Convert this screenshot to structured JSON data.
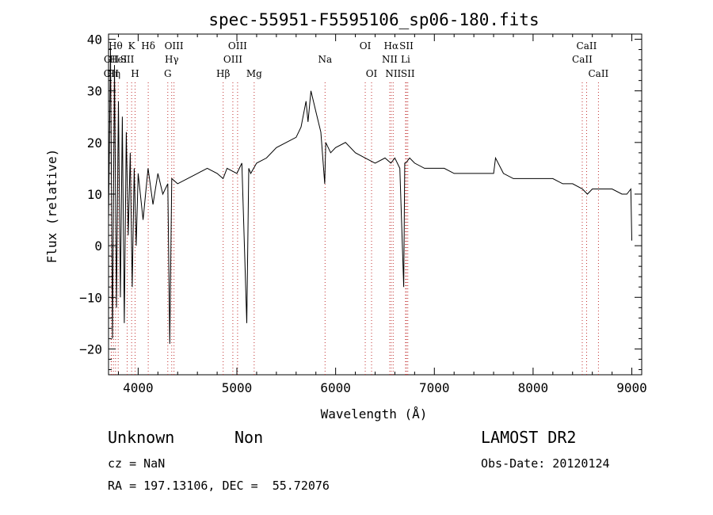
{
  "chart_data": {
    "type": "line",
    "title": "spec-55951-F5595106_sp06-180.fits",
    "xlabel": "Wavelength (Å)",
    "ylabel": "Flux (relative)",
    "xlim": [
      3700,
      9100
    ],
    "ylim": [
      -25,
      41
    ],
    "grid": false,
    "x_ticks": [
      4000,
      5000,
      6000,
      7000,
      8000,
      9000
    ],
    "x_tick_labels": [
      "4000",
      "5000",
      "6000",
      "7000",
      "8000",
      "9000"
    ],
    "y_ticks": [
      -20,
      -10,
      0,
      10,
      20,
      30,
      40
    ],
    "y_tick_labels": [
      "−20",
      "−10",
      "0",
      "10",
      "20",
      "30",
      "40"
    ],
    "series": [
      {
        "x": [
          3700,
          3720,
          3740,
          3760,
          3780,
          3800,
          3820,
          3840,
          3860,
          3880,
          3900,
          3920,
          3940,
          3960,
          3980,
          4000,
          4050,
          4100,
          4150,
          4200,
          4250,
          4300,
          4320,
          4340,
          4400,
          4500,
          4600,
          4700,
          4800,
          4860,
          4900,
          5000,
          5050,
          5100,
          5120,
          5140,
          5200,
          5300,
          5400,
          5500,
          5600,
          5650,
          5700,
          5720,
          5750,
          5800,
          5850,
          5890,
          5900,
          5950,
          6000,
          6100,
          6200,
          6300,
          6400,
          6500,
          6560,
          6600,
          6650,
          6690,
          6700,
          6710,
          6750,
          6800,
          6900,
          7000,
          7100,
          7200,
          7300,
          7400,
          7500,
          7600,
          7620,
          7700,
          7800,
          7900,
          8000,
          8100,
          8200,
          8300,
          8400,
          8500,
          8550,
          8600,
          8700,
          8800,
          8900,
          8950,
          8990,
          9000
        ],
        "y": [
          5,
          38,
          -18,
          35,
          -12,
          28,
          -10,
          25,
          -15,
          22,
          2,
          18,
          -8,
          15,
          0,
          14,
          5,
          15,
          8,
          14,
          10,
          12,
          -19,
          13,
          12,
          13,
          14,
          15,
          14,
          13,
          15,
          14,
          16,
          -15,
          15,
          14,
          16,
          17,
          19,
          20,
          21,
          23,
          28,
          24,
          30,
          26,
          22,
          12,
          20,
          18,
          19,
          20,
          18,
          17,
          16,
          17,
          16,
          17,
          15,
          -8,
          16,
          16,
          17,
          16,
          15,
          15,
          15,
          14,
          14,
          14,
          14,
          14,
          17,
          14,
          13,
          13,
          13,
          13,
          13,
          12,
          12,
          11,
          10,
          11,
          11,
          11,
          10,
          10,
          11,
          1
        ]
      }
    ],
    "line_markers": [
      {
        "x": 3727,
        "label": "OII",
        "row": 2
      },
      {
        "x": 3729,
        "label": "OII",
        "row": 1
      },
      {
        "x": 3750,
        "label": "Hη",
        "row": 2
      },
      {
        "x": 3771,
        "label": "Hθ",
        "row": 0
      },
      {
        "x": 3798,
        "label": "HeI",
        "row": 1
      },
      {
        "x": 3889,
        "label": "SII",
        "row": 1
      },
      {
        "x": 3934,
        "label": "K",
        "row": 0
      },
      {
        "x": 3969,
        "label": "H",
        "row": 2
      },
      {
        "x": 4102,
        "label": "Hδ",
        "row": 0
      },
      {
        "x": 4300,
        "label": "G",
        "row": 2
      },
      {
        "x": 4340,
        "label": "Hγ",
        "row": 1
      },
      {
        "x": 4363,
        "label": "OIII",
        "row": 0
      },
      {
        "x": 4861,
        "label": "Hβ",
        "row": 2
      },
      {
        "x": 4959,
        "label": "OIII",
        "row": 1
      },
      {
        "x": 5007,
        "label": "OIII",
        "row": 0
      },
      {
        "x": 5175,
        "label": "Mg",
        "row": 2
      },
      {
        "x": 5893,
        "label": "Na",
        "row": 1
      },
      {
        "x": 6300,
        "label": "OI",
        "row": 0
      },
      {
        "x": 6364,
        "label": "OI",
        "row": 2
      },
      {
        "x": 6548,
        "label": "NII",
        "row": 1
      },
      {
        "x": 6563,
        "label": "Hα",
        "row": 0
      },
      {
        "x": 6583,
        "label": "NII",
        "row": 2
      },
      {
        "x": 6708,
        "label": "Li",
        "row": 1
      },
      {
        "x": 6717,
        "label": "SII",
        "row": 0
      },
      {
        "x": 6731,
        "label": "SII",
        "row": 2
      },
      {
        "x": 8498,
        "label": "CaII",
        "row": 1
      },
      {
        "x": 8542,
        "label": "CaII",
        "row": 0
      },
      {
        "x": 8662,
        "label": "CaII",
        "row": 2
      }
    ]
  },
  "info": {
    "class_label": "Unknown",
    "subclass_label": "Non",
    "survey": "LAMOST DR2",
    "cz": "cz = NaN",
    "obs_date": "Obs-Date: 20120124",
    "coords": "RA = 197.13106, DEC =  55.72076"
  }
}
